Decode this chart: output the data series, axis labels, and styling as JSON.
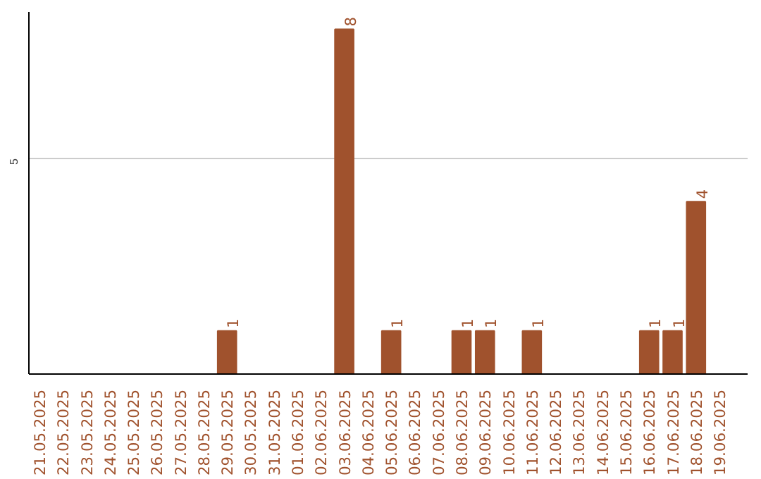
{
  "chart_data": {
    "type": "bar",
    "categories": [
      "21.05.2025",
      "22.05.2025",
      "23.05.2025",
      "24.05.2025",
      "25.05.2025",
      "26.05.2025",
      "27.05.2025",
      "28.05.2025",
      "29.05.2025",
      "30.05.2025",
      "31.05.2025",
      "01.06.2025",
      "02.06.2025",
      "03.06.2025",
      "04.06.2025",
      "05.06.2025",
      "06.06.2025",
      "07.06.2025",
      "08.06.2025",
      "09.06.2025",
      "10.06.2025",
      "11.06.2025",
      "12.06.2025",
      "13.06.2025",
      "14.06.2025",
      "15.06.2025",
      "16.06.2025",
      "17.06.2025",
      "18.06.2025",
      "19.06.2025"
    ],
    "values": [
      0,
      0,
      0,
      0,
      0,
      0,
      0,
      0,
      1,
      0,
      0,
      0,
      0,
      8,
      0,
      1,
      0,
      0,
      1,
      1,
      0,
      1,
      0,
      0,
      0,
      0,
      1,
      1,
      4,
      0
    ],
    "value_labels": [
      null,
      null,
      null,
      null,
      null,
      null,
      null,
      null,
      "1",
      null,
      null,
      null,
      null,
      "8",
      null,
      "1",
      null,
      null,
      "1",
      "1",
      null,
      "1",
      null,
      null,
      null,
      null,
      "1",
      "1",
      "4",
      null
    ],
    "color": "#a0522d",
    "ylim": [
      0,
      8.4
    ],
    "yticks": [
      5
    ],
    "grid": "y"
  }
}
